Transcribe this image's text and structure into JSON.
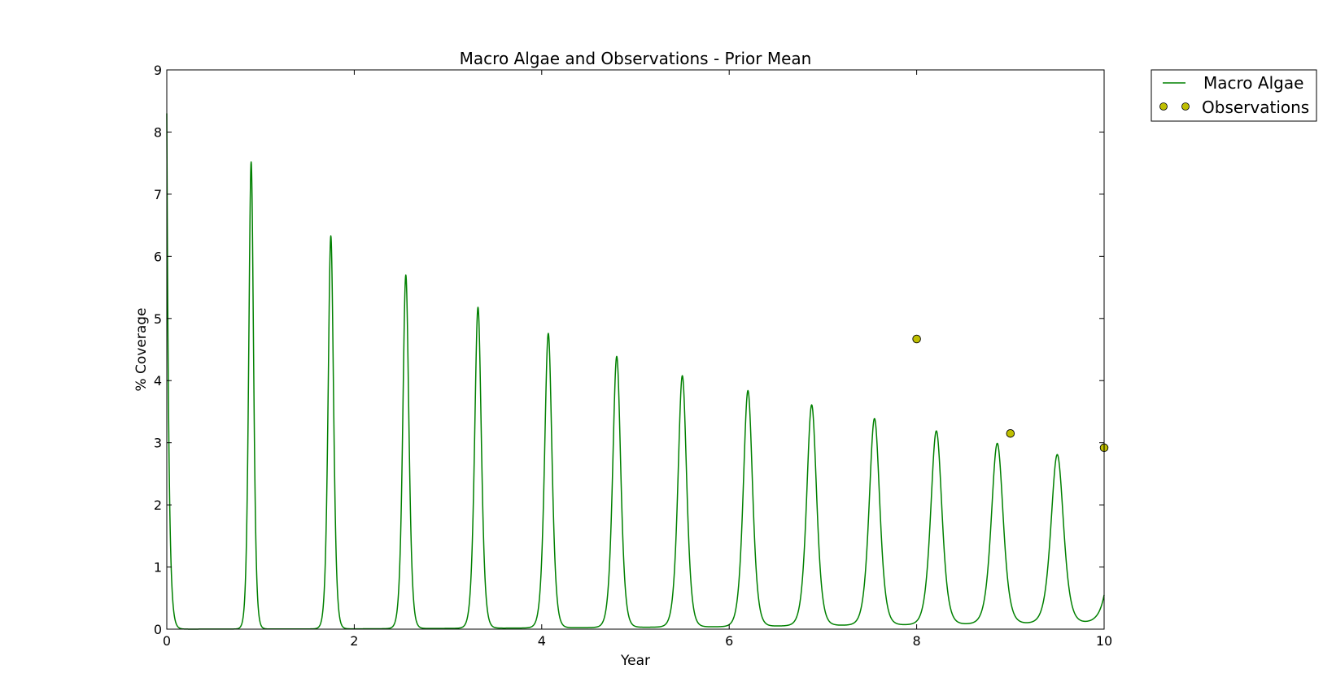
{
  "chart_data": {
    "type": "line",
    "title": "Macro Algae and Observations - Prior Mean",
    "xlabel": "Year",
    "ylabel": "% Coverage",
    "xlim": [
      0,
      10
    ],
    "ylim": [
      0,
      9
    ],
    "xticks": [
      "0",
      "2",
      "4",
      "6",
      "8",
      "10"
    ],
    "yticks": [
      "0",
      "1",
      "2",
      "3",
      "4",
      "5",
      "6",
      "7",
      "8",
      "9"
    ],
    "grid": false,
    "legend_position": "outside-top-right",
    "colors": {
      "line": "#008000",
      "marker": "#bfbf00",
      "marker_edge": "#000000"
    },
    "series": [
      {
        "name": "Macro Algae",
        "kind": "line",
        "start": 8.3,
        "baseline": [
          [
            0,
            0.0
          ],
          [
            2,
            0.005
          ],
          [
            4,
            0.02
          ],
          [
            6,
            0.04
          ],
          [
            7,
            0.06
          ],
          [
            8,
            0.07
          ],
          [
            9,
            0.09
          ],
          [
            10,
            0.1
          ]
        ],
        "peaks": [
          {
            "x": 0.9,
            "y": 7.52
          },
          {
            "x": 1.75,
            "y": 6.33
          },
          {
            "x": 2.55,
            "y": 5.7
          },
          {
            "x": 3.32,
            "y": 5.18
          },
          {
            "x": 4.07,
            "y": 4.76
          },
          {
            "x": 4.8,
            "y": 4.39
          },
          {
            "x": 5.5,
            "y": 4.08
          },
          {
            "x": 6.2,
            "y": 3.84
          },
          {
            "x": 6.88,
            "y": 3.61
          },
          {
            "x": 7.55,
            "y": 3.39
          },
          {
            "x": 8.21,
            "y": 3.19
          },
          {
            "x": 8.86,
            "y": 2.99
          },
          {
            "x": 9.5,
            "y": 2.81
          }
        ],
        "end": {
          "x": 10,
          "y": 0.55
        }
      },
      {
        "name": "Observations",
        "kind": "scatter",
        "points": [
          {
            "x": 8,
            "y": 4.67
          },
          {
            "x": 9,
            "y": 3.15
          },
          {
            "x": 10,
            "y": 2.92
          }
        ]
      }
    ]
  }
}
